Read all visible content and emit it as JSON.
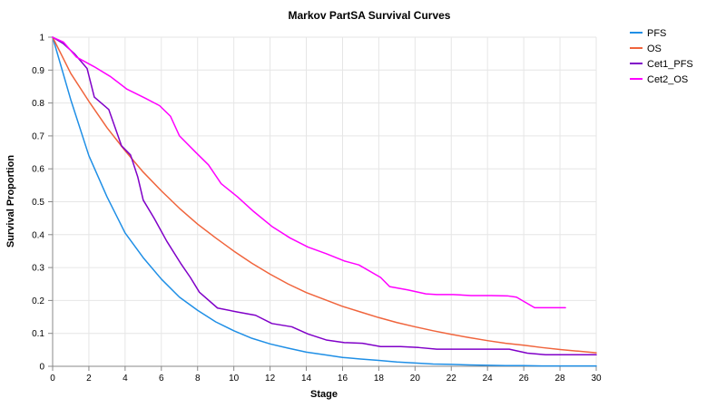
{
  "chart_data": {
    "type": "line",
    "title": "Markov PartSA Survival Curves",
    "xlabel": "Stage",
    "ylabel": "Survival Proportion",
    "xlim": [
      0,
      30
    ],
    "ylim": [
      0,
      1
    ],
    "xticks": [
      0,
      2,
      4,
      6,
      8,
      10,
      12,
      14,
      16,
      18,
      20,
      22,
      24,
      26,
      28,
      30
    ],
    "yticks": [
      0,
      0.1,
      0.2,
      0.3,
      0.4,
      0.5,
      0.6,
      0.7,
      0.8,
      0.9,
      1
    ],
    "grid": true,
    "legend_position": "top-right",
    "series": [
      {
        "name": "PFS",
        "color": "#1f8fe6",
        "points": [
          [
            0,
            1
          ],
          [
            1,
            0.81
          ],
          [
            2,
            0.64
          ],
          [
            3,
            0.515
          ],
          [
            4,
            0.405
          ],
          [
            5,
            0.33
          ],
          [
            6,
            0.265
          ],
          [
            7,
            0.21
          ],
          [
            8,
            0.17
          ],
          [
            9,
            0.135
          ],
          [
            10,
            0.108
          ],
          [
            11,
            0.085
          ],
          [
            12,
            0.068
          ],
          [
            13,
            0.055
          ],
          [
            14,
            0.043
          ],
          [
            15,
            0.035
          ],
          [
            16,
            0.027
          ],
          [
            17,
            0.022
          ],
          [
            18,
            0.018
          ],
          [
            19,
            0.013
          ],
          [
            20,
            0.01
          ],
          [
            21,
            0.007
          ],
          [
            22,
            0.006
          ],
          [
            23,
            0.004
          ],
          [
            24,
            0.003
          ],
          [
            25,
            0.002
          ],
          [
            26,
            0.002
          ],
          [
            27,
            0.001
          ],
          [
            28,
            0.001
          ],
          [
            29,
            0.001
          ],
          [
            30,
            0.001
          ]
        ]
      },
      {
        "name": "OS",
        "color": "#f0643c",
        "points": [
          [
            0,
            1
          ],
          [
            1,
            0.89
          ],
          [
            2,
            0.805
          ],
          [
            3,
            0.725
          ],
          [
            4,
            0.655
          ],
          [
            5,
            0.59
          ],
          [
            6,
            0.533
          ],
          [
            7,
            0.48
          ],
          [
            8,
            0.432
          ],
          [
            9,
            0.39
          ],
          [
            10,
            0.35
          ],
          [
            11,
            0.313
          ],
          [
            12,
            0.28
          ],
          [
            13,
            0.25
          ],
          [
            14,
            0.224
          ],
          [
            15,
            0.203
          ],
          [
            16,
            0.182
          ],
          [
            17,
            0.165
          ],
          [
            18,
            0.148
          ],
          [
            19,
            0.133
          ],
          [
            20,
            0.12
          ],
          [
            21,
            0.108
          ],
          [
            22,
            0.097
          ],
          [
            23,
            0.087
          ],
          [
            24,
            0.078
          ],
          [
            25,
            0.07
          ],
          [
            26,
            0.064
          ],
          [
            27,
            0.057
          ],
          [
            28,
            0.051
          ],
          [
            29,
            0.046
          ],
          [
            30,
            0.041
          ]
        ]
      },
      {
        "name": "Cet1_PFS",
        "color": "#8000c8",
        "points": [
          [
            0,
            1
          ],
          [
            0.6,
            0.98
          ],
          [
            1.2,
            0.95
          ],
          [
            1.9,
            0.905
          ],
          [
            2.3,
            0.818
          ],
          [
            3.1,
            0.78
          ],
          [
            3.8,
            0.67
          ],
          [
            4.3,
            0.642
          ],
          [
            4.7,
            0.575
          ],
          [
            5,
            0.505
          ],
          [
            5.6,
            0.45
          ],
          [
            6.3,
            0.38
          ],
          [
            7.1,
            0.31
          ],
          [
            7.6,
            0.27
          ],
          [
            8.1,
            0.225
          ],
          [
            9.1,
            0.177
          ],
          [
            10.2,
            0.165
          ],
          [
            11.2,
            0.155
          ],
          [
            12.1,
            0.13
          ],
          [
            13.2,
            0.12
          ],
          [
            14.1,
            0.098
          ],
          [
            15.1,
            0.08
          ],
          [
            16.1,
            0.072
          ],
          [
            17.1,
            0.07
          ],
          [
            18.1,
            0.06
          ],
          [
            19.2,
            0.06
          ],
          [
            20.2,
            0.057
          ],
          [
            21.2,
            0.052
          ],
          [
            22.2,
            0.052
          ],
          [
            23.2,
            0.052
          ],
          [
            24.2,
            0.052
          ],
          [
            25.2,
            0.052
          ],
          [
            26.2,
            0.04
          ],
          [
            27.2,
            0.035
          ],
          [
            28.2,
            0.035
          ],
          [
            29.2,
            0.035
          ],
          [
            30,
            0.035
          ]
        ]
      },
      {
        "name": "Cet2_OS",
        "color": "#ff00ff",
        "points": [
          [
            0,
            1
          ],
          [
            0.6,
            0.985
          ],
          [
            1.3,
            0.94
          ],
          [
            2.3,
            0.91
          ],
          [
            3.2,
            0.88
          ],
          [
            4.1,
            0.842
          ],
          [
            5.1,
            0.815
          ],
          [
            5.9,
            0.792
          ],
          [
            6.5,
            0.76
          ],
          [
            7,
            0.7
          ],
          [
            7.9,
            0.65
          ],
          [
            8.6,
            0.612
          ],
          [
            9.3,
            0.555
          ],
          [
            10.2,
            0.515
          ],
          [
            11.1,
            0.47
          ],
          [
            12.1,
            0.425
          ],
          [
            13.1,
            0.39
          ],
          [
            14.1,
            0.362
          ],
          [
            15.1,
            0.342
          ],
          [
            16.1,
            0.32
          ],
          [
            16.9,
            0.308
          ],
          [
            18.1,
            0.27
          ],
          [
            18.6,
            0.242
          ],
          [
            19.6,
            0.232
          ],
          [
            20.6,
            0.22
          ],
          [
            21.2,
            0.218
          ],
          [
            22.1,
            0.218
          ],
          [
            23.1,
            0.215
          ],
          [
            24.2,
            0.215
          ],
          [
            25.1,
            0.214
          ],
          [
            25.6,
            0.21
          ],
          [
            26.6,
            0.178
          ],
          [
            27.2,
            0.178
          ],
          [
            28.3,
            0.178
          ]
        ]
      }
    ]
  }
}
